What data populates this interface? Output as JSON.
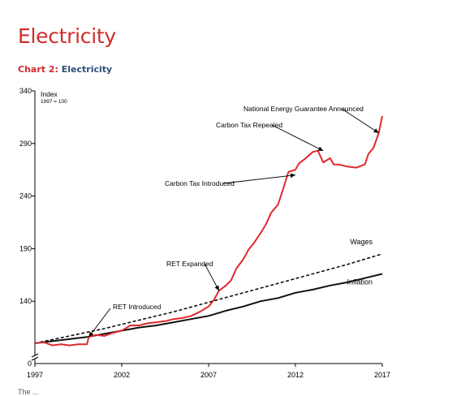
{
  "page": {
    "heading": "Electricity",
    "caption_number": "Chart 2:",
    "caption_name": "Electricity",
    "footer": "The ... "
  },
  "colors": {
    "accent": "#d22b2b",
    "caption_blue": "#2a4d7a",
    "electricity": "#e0282e",
    "wages": "#111111",
    "inflation": "#111111"
  },
  "chart_data": {
    "type": "line",
    "ylabel": "Index",
    "ylabel_sub": "1997 = 100",
    "xlim": [
      1997,
      2017
    ],
    "ylim": [
      90,
      340
    ],
    "y_axis_zero_label": "0",
    "yticks": [
      140,
      190,
      240,
      290,
      340
    ],
    "xticks": [
      1997,
      2002,
      2007,
      2012,
      2017
    ],
    "series": [
      {
        "name": "Electricity",
        "style": "solid-red",
        "x": [
          1997,
          1997.5,
          1998,
          1998.5,
          1999,
          1999.5,
          2000,
          2000.1,
          2000.5,
          2001,
          2001.5,
          2002,
          2002.5,
          2003,
          2003.5,
          2004,
          2004.5,
          2005,
          2005.5,
          2006,
          2006.5,
          2007,
          2007.3,
          2007.6,
          2008,
          2008.3,
          2008.6,
          2009,
          2009.3,
          2009.6,
          2010,
          2010.3,
          2010.6,
          2011,
          2011.3,
          2011.6,
          2012,
          2012.2,
          2012.6,
          2013,
          2013.3,
          2013.6,
          2014,
          2014.2,
          2014.5,
          2015,
          2015.5,
          2016,
          2016.2,
          2016.5,
          2016.8,
          2017
        ],
        "values": [
          100,
          101,
          98,
          99,
          98,
          99,
          99,
          106,
          108,
          107,
          110,
          112,
          117,
          117,
          119,
          120,
          121,
          123,
          124,
          126,
          130,
          135,
          141,
          150,
          155,
          160,
          171,
          180,
          189,
          195,
          205,
          213,
          224,
          232,
          247,
          263,
          265,
          271,
          276,
          282,
          283,
          272,
          276,
          270,
          270,
          268,
          267,
          270,
          280,
          286,
          300,
          316
        ]
      },
      {
        "name": "Wages",
        "style": "dashed-black",
        "x": [
          1997,
          1999,
          2001,
          2003,
          2005,
          2007,
          2009,
          2011,
          2013,
          2015,
          2017
        ],
        "values": [
          100,
          107,
          114,
          122,
          130,
          139,
          148,
          157,
          166,
          175,
          185
        ]
      },
      {
        "name": "Inflation",
        "style": "solid-black",
        "x": [
          1997,
          1998,
          1999,
          2000,
          2001,
          2002,
          2003,
          2004,
          2005,
          2006,
          2007,
          2008,
          2009,
          2010,
          2011,
          2012,
          2013,
          2014,
          2015,
          2016,
          2017
        ],
        "values": [
          100,
          102,
          104,
          106,
          109,
          112,
          115,
          117,
          120,
          123,
          126,
          131,
          135,
          140,
          143,
          148,
          151,
          155,
          158,
          162,
          166
        ]
      }
    ],
    "annotations": [
      {
        "text": "National Energy Guarantee Announced",
        "x": 2016.8,
        "y": 300
      },
      {
        "text": "Carbon Tax Repealed",
        "x": 2013.6,
        "y": 283
      },
      {
        "text": "Carbon Tax Introduced",
        "x": 2012.0,
        "y": 260
      },
      {
        "text": "RET Expanded",
        "x": 2007.6,
        "y": 150
      },
      {
        "text": "RET Introduced",
        "x": 2000.1,
        "y": 106
      }
    ]
  }
}
